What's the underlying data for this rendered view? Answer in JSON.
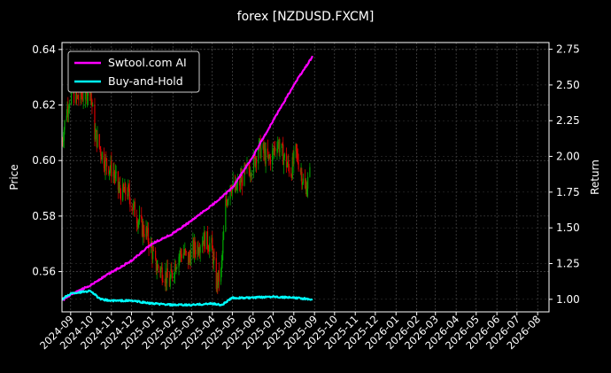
{
  "title": "forex [NZDUSD.FXCM]",
  "chart_data": {
    "type": "line",
    "title": "forex [NZDUSD.FXCM]",
    "ylabel": "Price",
    "y2label": "Return",
    "ylim": [
      0.5455,
      0.6425
    ],
    "y2lim": [
      0.912,
      2.797
    ],
    "xlim": [
      "2024-08-19",
      "2026-08-18"
    ],
    "yticks": [
      0.56,
      0.58,
      0.6,
      0.62,
      0.64
    ],
    "y2ticks": [
      1.0,
      1.25,
      1.5,
      1.75,
      2.0,
      2.25,
      2.5,
      2.75
    ],
    "xtick_labels": [
      "2024-09",
      "2024-10",
      "2024-11",
      "2024-12",
      "2025-01",
      "2025-02",
      "2025-03",
      "2025-04",
      "2025-05",
      "2025-06",
      "2025-07",
      "2025-08",
      "2025-09",
      "2025-10",
      "2025-11",
      "2025-12",
      "2026-01",
      "2026-02",
      "2026-03",
      "2026-04",
      "2026-05",
      "2026-06",
      "2026-07",
      "2026-08"
    ],
    "xtick_dates": [
      "2024-09-01",
      "2024-10-01",
      "2024-11-01",
      "2024-12-01",
      "2025-01-01",
      "2025-02-01",
      "2025-03-01",
      "2025-04-01",
      "2025-05-01",
      "2025-06-01",
      "2025-07-01",
      "2025-08-01",
      "2025-09-01",
      "2025-10-01",
      "2025-11-01",
      "2025-12-01",
      "2026-01-01",
      "2026-02-01",
      "2026-03-01",
      "2026-04-01",
      "2026-05-01",
      "2026-06-01",
      "2026-07-01",
      "2026-08-01"
    ],
    "grid": true,
    "legend_position": "top-left",
    "legend": [
      {
        "name": "Swtool.com AI",
        "color": "#ff00ff"
      },
      {
        "name": "Buy-and-Hold",
        "color": "#00ffff"
      }
    ],
    "candle_colors": {
      "up": "#00a000",
      "down": "#dd0000"
    },
    "price_series": {
      "name": "",
      "color_up": "#00a000",
      "color_down": "#dd0000",
      "x": [
        "2024-08-19",
        "2024-08-26",
        "2024-09-02",
        "2024-09-09",
        "2024-09-16",
        "2024-09-23",
        "2024-09-30",
        "2024-10-07",
        "2024-10-14",
        "2024-10-21",
        "2024-10-28",
        "2024-11-04",
        "2024-11-11",
        "2024-11-18",
        "2024-11-25",
        "2024-12-02",
        "2024-12-09",
        "2024-12-16",
        "2024-12-23",
        "2024-12-30",
        "2025-01-06",
        "2025-01-13",
        "2025-01-20",
        "2025-01-27",
        "2025-02-03",
        "2025-02-10",
        "2025-02-17",
        "2025-02-24",
        "2025-03-03",
        "2025-03-10",
        "2025-03-17",
        "2025-03-24",
        "2025-03-31",
        "2025-04-07",
        "2025-04-14",
        "2025-04-21",
        "2025-04-28",
        "2025-05-05",
        "2025-05-12",
        "2025-05-19",
        "2025-05-26",
        "2025-06-02",
        "2025-06-09",
        "2025-06-16",
        "2025-06-23",
        "2025-06-30",
        "2025-07-07",
        "2025-07-14",
        "2025-07-21",
        "2025-07-28",
        "2025-08-04",
        "2025-08-11",
        "2025-08-18",
        "2025-08-25"
      ],
      "y": [
        0.607,
        0.618,
        0.626,
        0.622,
        0.623,
        0.624,
        0.627,
        0.61,
        0.605,
        0.6,
        0.598,
        0.596,
        0.59,
        0.588,
        0.589,
        0.584,
        0.58,
        0.576,
        0.574,
        0.569,
        0.562,
        0.561,
        0.559,
        0.556,
        0.562,
        0.566,
        0.567,
        0.564,
        0.568,
        0.569,
        0.572,
        0.571,
        0.569,
        0.556,
        0.559,
        0.584,
        0.592,
        0.589,
        0.592,
        0.595,
        0.597,
        0.599,
        0.605,
        0.603,
        0.6,
        0.602,
        0.607,
        0.603,
        0.599,
        0.596,
        0.603,
        0.597,
        0.589,
        0.595
      ]
    },
    "series": [
      {
        "name": "Swtool.com AI",
        "axis": "right",
        "color": "#ff00ff",
        "x": [
          "2024-08-19",
          "2024-09-01",
          "2024-10-01",
          "2024-11-01",
          "2024-12-01",
          "2025-01-01",
          "2025-02-01",
          "2025-03-01",
          "2025-04-01",
          "2025-05-01",
          "2025-06-01",
          "2025-07-01",
          "2025-08-01",
          "2025-08-29"
        ],
        "y": [
          0.99,
          1.03,
          1.1,
          1.19,
          1.27,
          1.39,
          1.46,
          1.55,
          1.66,
          1.78,
          2.0,
          2.25,
          2.5,
          2.7
        ]
      },
      {
        "name": "Buy-and-Hold",
        "axis": "right",
        "color": "#00ffff",
        "x": [
          "2024-08-19",
          "2024-09-01",
          "2024-09-15",
          "2024-10-01",
          "2024-10-15",
          "2024-11-01",
          "2024-12-01",
          "2025-01-01",
          "2025-02-01",
          "2025-03-01",
          "2025-04-01",
          "2025-04-15",
          "2025-05-01",
          "2025-06-01",
          "2025-07-01",
          "2025-08-01",
          "2025-08-29"
        ],
        "y": [
          1.0,
          1.04,
          1.05,
          1.06,
          1.0,
          0.99,
          0.99,
          0.97,
          0.96,
          0.96,
          0.97,
          0.96,
          1.01,
          1.01,
          1.02,
          1.01,
          1.0
        ]
      }
    ]
  }
}
